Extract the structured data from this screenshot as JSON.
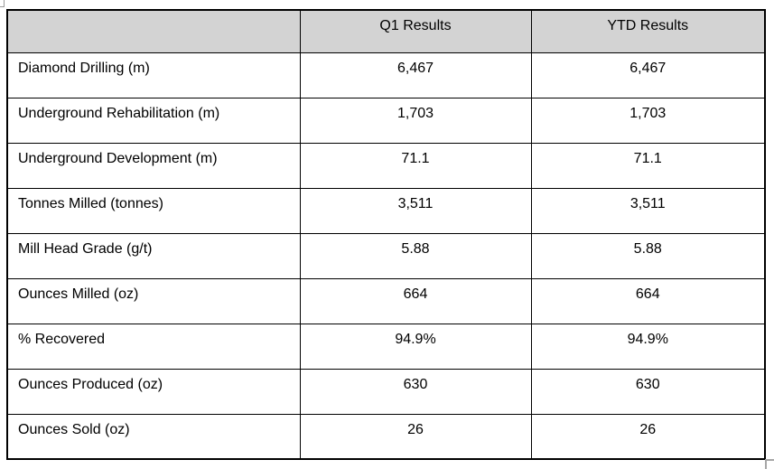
{
  "table": {
    "columns": [
      "",
      "Q1 Results",
      "YTD Results"
    ],
    "rows": [
      {
        "label": "Diamond Drilling (m)",
        "q1": "6,467",
        "ytd": "6,467"
      },
      {
        "label": "Underground Rehabilitation (m)",
        "q1": "1,703",
        "ytd": "1,703"
      },
      {
        "label": "Underground Development (m)",
        "q1": "71.1",
        "ytd": "71.1"
      },
      {
        "label": "Tonnes Milled (tonnes)",
        "q1": "3,511",
        "ytd": "3,511"
      },
      {
        "label": "Mill Head Grade (g/t)",
        "q1": "5.88",
        "ytd": "5.88"
      },
      {
        "label": "Ounces Milled (oz)",
        "q1": "664",
        "ytd": "664"
      },
      {
        "label": "% Recovered",
        "q1": "94.9%",
        "ytd": "94.9%"
      },
      {
        "label": "Ounces Produced (oz)",
        "q1": "630",
        "ytd": "630"
      },
      {
        "label": "Ounces Sold (oz)",
        "q1": "26",
        "ytd": "26"
      }
    ]
  },
  "colors": {
    "header_background": "#d3d3d3",
    "grid_border": "#000000",
    "handle_gray": "#a6a6a6",
    "text": "#000000"
  },
  "handles": {
    "move_handle": "table-move-handle",
    "resize_handle": "table-resize-handle"
  }
}
